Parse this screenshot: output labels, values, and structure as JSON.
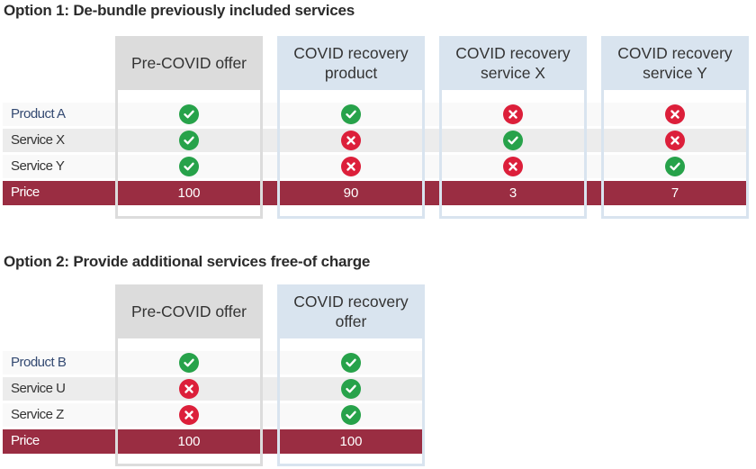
{
  "option1": {
    "title": "Option 1: De-bundle previously included services",
    "columns": [
      {
        "header": "Pre-COVID offer",
        "style": "grey"
      },
      {
        "header": "COVID recovery product",
        "style": "blue"
      },
      {
        "header": "COVID recovery service X",
        "style": "blue"
      },
      {
        "header": "COVID recovery service Y",
        "style": "blue"
      }
    ],
    "rows": [
      {
        "label": "Product A",
        "type": "product",
        "values": [
          true,
          true,
          false,
          false
        ]
      },
      {
        "label": "Service X",
        "type": "service",
        "values": [
          true,
          false,
          true,
          false
        ]
      },
      {
        "label": "Service Y",
        "type": "service",
        "values": [
          true,
          false,
          false,
          true
        ]
      }
    ],
    "price": {
      "label": "Price",
      "values": [
        "100",
        "90",
        "3",
        "7"
      ]
    }
  },
  "option2": {
    "title": "Option 2: Provide additional services free-of charge",
    "columns": [
      {
        "header": "Pre-COVID offer",
        "style": "grey"
      },
      {
        "header": "COVID recovery offer",
        "style": "blue"
      }
    ],
    "rows": [
      {
        "label": "Product B",
        "type": "product",
        "values": [
          true,
          true
        ]
      },
      {
        "label": "Service U",
        "type": "service",
        "values": [
          false,
          true
        ]
      },
      {
        "label": "Service Z",
        "type": "service",
        "values": [
          false,
          true
        ]
      }
    ],
    "price": {
      "label": "Price",
      "values": [
        "100",
        "100"
      ]
    }
  },
  "colors": {
    "check": "#27a24a",
    "cross": "#dc1f3a",
    "price_band": "#9a2d42",
    "grey_header": "#dcdcdc",
    "blue_header": "#d9e4ef"
  },
  "icons": {
    "yes": "check-circle-icon",
    "no": "cross-circle-icon"
  }
}
